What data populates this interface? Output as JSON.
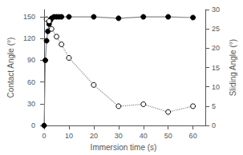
{
  "chart_data": {
    "type": "line",
    "xlabel": "Immersion time (s)",
    "ylabel": "Contact Angle (°)",
    "y2label": "Sliding Angle (°)",
    "xlim": [
      -1,
      65
    ],
    "xticks": [
      0,
      10,
      20,
      30,
      40,
      50,
      60
    ],
    "ylim": [
      0,
      160
    ],
    "yticks": [
      0,
      30,
      60,
      90,
      120,
      150
    ],
    "y2lim": [
      0,
      30
    ],
    "y2ticks": [
      0,
      5,
      10,
      15,
      20,
      25,
      30
    ],
    "grid": false,
    "series": [
      {
        "x": [
          0,
          0.5,
          1,
          1.5,
          2,
          2.5,
          3,
          4,
          5,
          6,
          7,
          10,
          20,
          30,
          40,
          50,
          60
        ],
        "values": [
          0,
          90,
          117,
          130,
          140,
          145,
          148,
          150,
          150,
          150,
          150,
          150,
          150,
          148,
          150,
          150,
          149
        ],
        "color": "#888888",
        "marker": "circle",
        "line_style": "solid"
      },
      {
        "x": [
          1,
          2,
          3,
          5,
          7,
          10,
          20,
          30,
          40,
          50,
          60
        ],
        "values": [
          27.5,
          27,
          25,
          23,
          21,
          17.5,
          10.5,
          5,
          5.5,
          3.5,
          5
        ],
        "color": "#888888",
        "marker": "open_circle",
        "line_style": "dotted",
        "axis": "y2"
      }
    ]
  }
}
